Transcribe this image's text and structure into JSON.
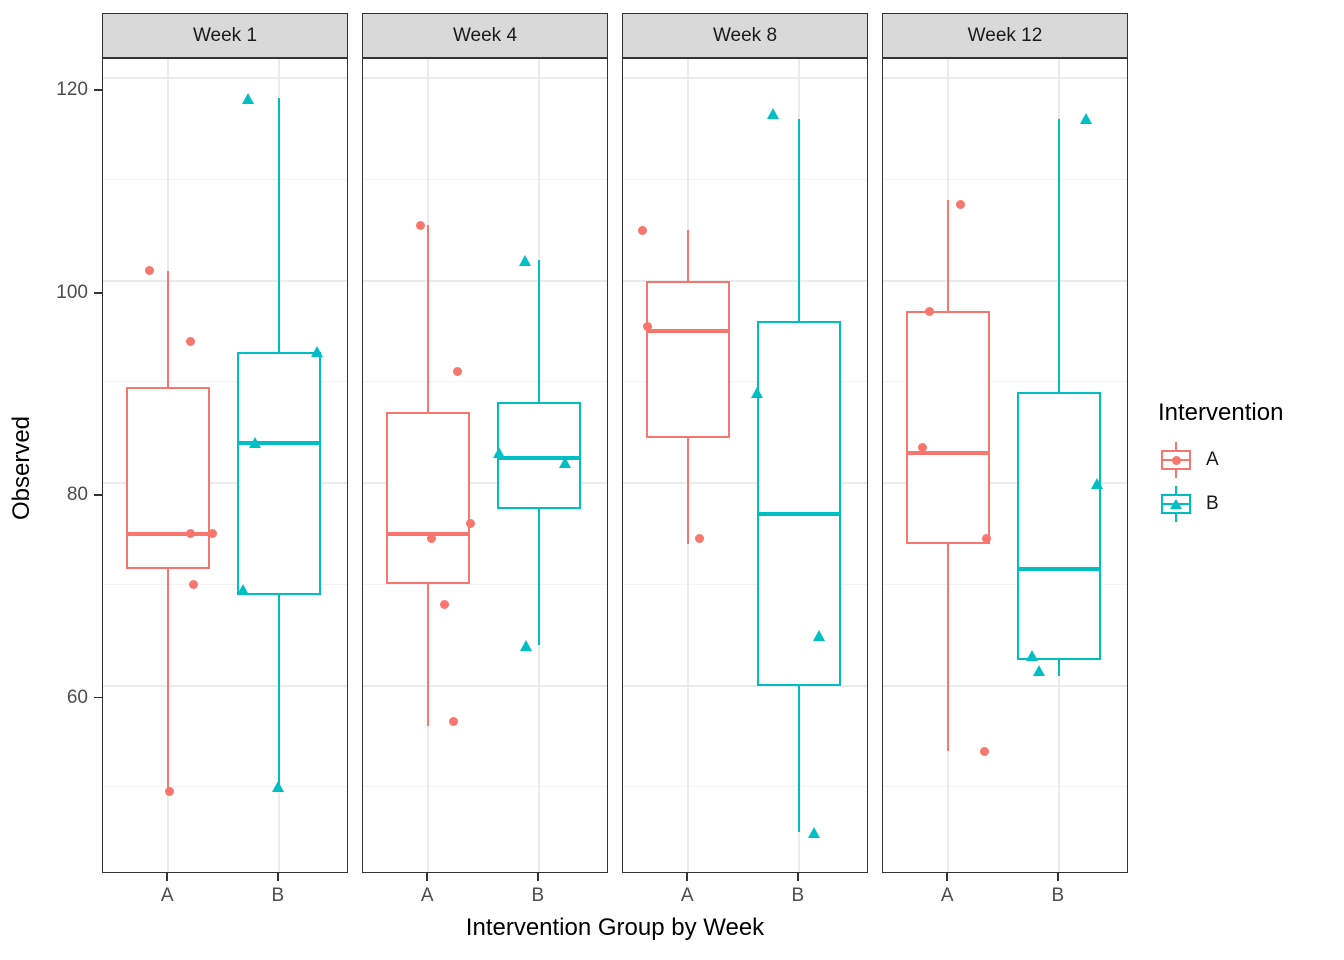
{
  "chart_data": {
    "type": "boxplot",
    "title": "",
    "xlabel": "Intervention Group by Week",
    "ylabel": "Observed",
    "y_ticks": [
      60,
      80,
      100,
      120
    ],
    "y_minor_ticks": [
      50,
      70,
      90,
      110
    ],
    "ylim": [
      41.4,
      121.9
    ],
    "x_categories": [
      "A",
      "B"
    ],
    "grid": "on",
    "legend": {
      "title": "Intervention",
      "position": "right",
      "entries": [
        {
          "label": "A",
          "color": "#F8766D",
          "marker": "circle"
        },
        {
          "label": "B",
          "color": "#00BFC4",
          "marker": "triangle"
        }
      ]
    },
    "group_geometry": {
      "A": {
        "center": 0.265,
        "left": 0.095,
        "right": 0.435
      },
      "B": {
        "center": 0.715,
        "left": 0.545,
        "right": 0.885
      }
    },
    "facets": [
      {
        "label": "Week 1",
        "boxes": [
          {
            "group": "A",
            "whisker_low": 49.5,
            "q1": 71.5,
            "median": 75,
            "q3": 89.5,
            "whisker_high": 101,
            "points": [
              {
                "x": 0.191,
                "y": 101
              },
              {
                "x": 0.354,
                "y": 94
              },
              {
                "x": 0.354,
                "y": 75
              },
              {
                "x": 0.447,
                "y": 75
              },
              {
                "x": 0.366,
                "y": 70
              },
              {
                "x": 0.272,
                "y": 49.5
              }
            ]
          },
          {
            "group": "B",
            "whisker_low": 50,
            "q1": 69,
            "median": 84,
            "q3": 93,
            "whisker_high": 118,
            "points": [
              {
                "x": 0.593,
                "y": 118
              },
              {
                "x": 0.87,
                "y": 93
              },
              {
                "x": 0.618,
                "y": 84
              },
              {
                "x": 0.573,
                "y": 69.5
              },
              {
                "x": 0.715,
                "y": 50
              }
            ]
          }
        ]
      },
      {
        "label": "Week 4",
        "boxes": [
          {
            "group": "A",
            "whisker_low": 56,
            "q1": 70,
            "median": 75,
            "q3": 87,
            "whisker_high": 105.5,
            "points": [
              {
                "x": 0.232,
                "y": 105.5
              },
              {
                "x": 0.386,
                "y": 91
              },
              {
                "x": 0.435,
                "y": 76
              },
              {
                "x": 0.28,
                "y": 74.5
              },
              {
                "x": 0.333,
                "y": 68
              },
              {
                "x": 0.366,
                "y": 56.5
              }
            ]
          },
          {
            "group": "B",
            "whisker_low": 64,
            "q1": 77.5,
            "median": 82.5,
            "q3": 88,
            "whisker_high": 102,
            "points": [
              {
                "x": 0.659,
                "y": 102
              },
              {
                "x": 0.553,
                "y": 83
              },
              {
                "x": 0.825,
                "y": 82
              },
              {
                "x": 0.663,
                "y": 64
              }
            ]
          }
        ]
      },
      {
        "label": "Week 8",
        "boxes": [
          {
            "group": "A",
            "whisker_low": 74,
            "q1": 84.5,
            "median": 95,
            "q3": 100,
            "whisker_high": 105,
            "points": [
              {
                "x": 0.081,
                "y": 105
              },
              {
                "x": 0.098,
                "y": 95.5
              },
              {
                "x": 0.313,
                "y": 74.5
              }
            ]
          },
          {
            "group": "B",
            "whisker_low": 45.5,
            "q1": 60,
            "median": 77,
            "q3": 96,
            "whisker_high": 116,
            "points": [
              {
                "x": 0.61,
                "y": 116.5
              },
              {
                "x": 0.545,
                "y": 89
              },
              {
                "x": 0.797,
                "y": 65
              },
              {
                "x": 0.78,
                "y": 45.5
              }
            ]
          }
        ]
      },
      {
        "label": "Week 12",
        "boxes": [
          {
            "group": "A",
            "whisker_low": 53.5,
            "q1": 74,
            "median": 83,
            "q3": 97,
            "whisker_high": 108,
            "points": [
              {
                "x": 0.317,
                "y": 107.5
              },
              {
                "x": 0.187,
                "y": 97
              },
              {
                "x": 0.159,
                "y": 83.5
              },
              {
                "x": 0.419,
                "y": 74.5
              },
              {
                "x": 0.411,
                "y": 53.5
              }
            ]
          },
          {
            "group": "B",
            "whisker_low": 61,
            "q1": 62.5,
            "median": 71.5,
            "q3": 89,
            "whisker_high": 116,
            "points": [
              {
                "x": 0.829,
                "y": 116
              },
              {
                "x": 0.87,
                "y": 80
              },
              {
                "x": 0.606,
                "y": 63
              },
              {
                "x": 0.638,
                "y": 61.5
              }
            ]
          }
        ]
      }
    ],
    "style": {
      "panel_border": "#333333",
      "strip_fill": "#d9d9d9",
      "grid_major": "#ebebeb",
      "grid_minor": "#f4f4f4",
      "tick_label_color": "#4d4d4d"
    }
  }
}
